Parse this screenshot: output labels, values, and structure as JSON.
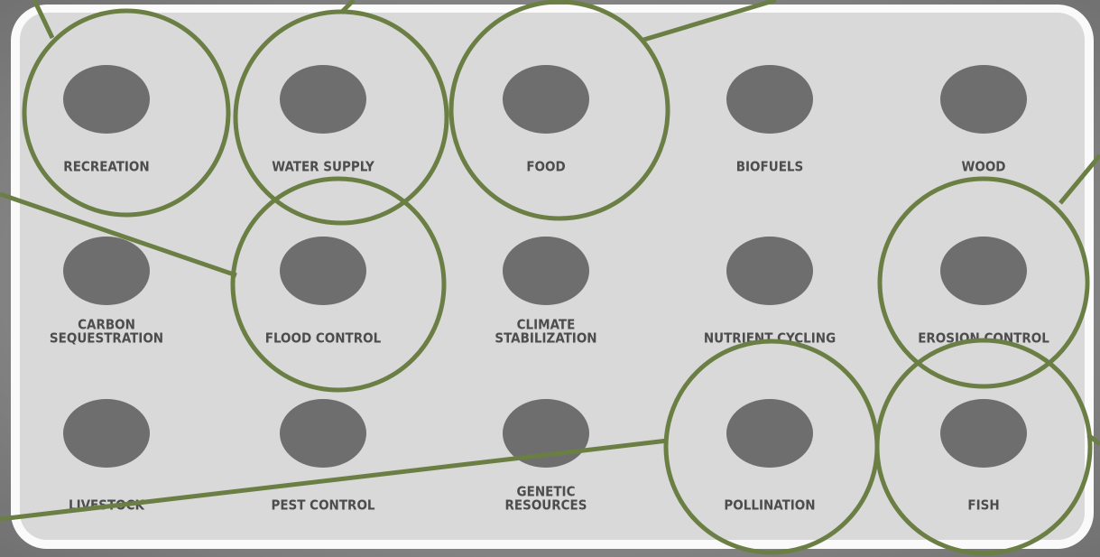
{
  "title_grid": {
    "items": [
      {
        "label": [
          "RECREATION"
        ]
      },
      {
        "label": [
          "WATER SUPPLY"
        ]
      },
      {
        "label": [
          "FOOD"
        ]
      },
      {
        "label": [
          "BIOFUELS"
        ]
      },
      {
        "label": [
          "WOOD"
        ]
      },
      {
        "label": [
          "CARBON",
          "SEQUESTRATION"
        ]
      },
      {
        "label": [
          "FLOOD CONTROL"
        ]
      },
      {
        "label": [
          "CLIMATE",
          "STABILIZATION"
        ]
      },
      {
        "label": [
          "NUTRIENT CYCLING"
        ]
      },
      {
        "label": [
          "EROSION CONTROL"
        ]
      },
      {
        "label": [
          "LIVESTOCK"
        ]
      },
      {
        "label": [
          "PEST CONTROL"
        ]
      },
      {
        "label": [
          "GENETIC",
          "RESOURCES"
        ]
      },
      {
        "label": [
          "POLLINATION"
        ]
      },
      {
        "label": [
          "FISH"
        ]
      }
    ]
  }
}
